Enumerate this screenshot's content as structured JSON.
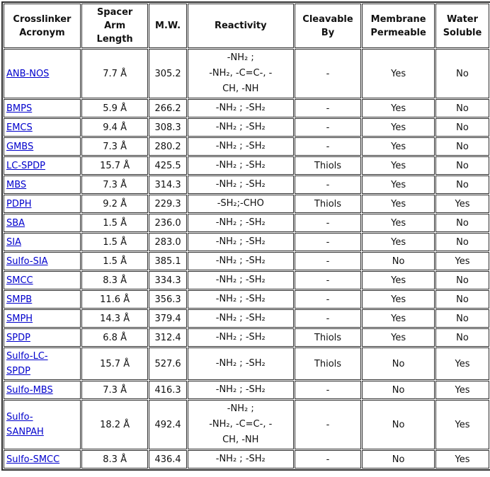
{
  "colors": {
    "link_blue": "#0000cc",
    "border": "#2e2e2e",
    "text": "#111111",
    "background": "#ffffff"
  },
  "table": {
    "headers": [
      {
        "id": "acronym",
        "label": "Crosslinker\nAcronym"
      },
      {
        "id": "spacer",
        "label": "Spacer\nArm\nLength"
      },
      {
        "id": "mw",
        "label": "M.W."
      },
      {
        "id": "reactivity",
        "label": "Reactivity"
      },
      {
        "id": "cleavable",
        "label": "Cleavable\nBy"
      },
      {
        "id": "membrane",
        "label": "Membrane\nPermeable"
      },
      {
        "id": "water",
        "label": "Water\nSoluble"
      }
    ],
    "rows": [
      {
        "acronym": "ANB-NOS",
        "spacer": "7.7 Å",
        "mw": "305.2",
        "reactivity": "-NH₂ ;\n-NH₂, -C=C-, -\nCH, -NH",
        "cleavable": "-",
        "membrane": "Yes",
        "water": "No"
      },
      {
        "acronym": "BMPS",
        "spacer": "5.9 Å",
        "mw": "266.2",
        "reactivity": "-NH₂ ; -SH₂",
        "cleavable": "-",
        "membrane": "Yes",
        "water": "No"
      },
      {
        "acronym": "EMCS",
        "spacer": "9.4 Å",
        "mw": "308.3",
        "reactivity": "-NH₂ ; -SH₂",
        "cleavable": "-",
        "membrane": "Yes",
        "water": "No"
      },
      {
        "acronym": "GMBS",
        "spacer": "7.3 Å",
        "mw": "280.2",
        "reactivity": "-NH₂ ; -SH₂",
        "cleavable": "-",
        "membrane": "Yes",
        "water": "No"
      },
      {
        "acronym": "LC-SPDP",
        "spacer": "15.7 Å",
        "mw": "425.5",
        "reactivity": "-NH₂ ; -SH₂",
        "cleavable": "Thiols",
        "membrane": "Yes",
        "water": "No"
      },
      {
        "acronym": "MBS",
        "spacer": "7.3 Å",
        "mw": "314.3",
        "reactivity": "-NH₂ ; -SH₂",
        "cleavable": "-",
        "membrane": "Yes",
        "water": "No"
      },
      {
        "acronym": "PDPH",
        "spacer": "9.2 Å",
        "mw": "229.3",
        "reactivity": "-SH₂;-CHO",
        "cleavable": "Thiols",
        "membrane": "Yes",
        "water": "Yes"
      },
      {
        "acronym": "SBA",
        "spacer": "1.5 Å",
        "mw": "236.0",
        "reactivity": "-NH₂ ; -SH₂",
        "cleavable": "-",
        "membrane": "Yes",
        "water": "No"
      },
      {
        "acronym": "SIA",
        "spacer": "1.5 Å",
        "mw": "283.0",
        "reactivity": "-NH₂ ; -SH₂",
        "cleavable": "-",
        "membrane": "Yes",
        "water": "No"
      },
      {
        "acronym": "Sulfo-SIA",
        "spacer": "1.5 Å",
        "mw": "385.1",
        "reactivity": "-NH₂ ; -SH₂",
        "cleavable": "-",
        "membrane": "No",
        "water": "Yes"
      },
      {
        "acronym": "SMCC",
        "spacer": "8.3 Å",
        "mw": "334.3",
        "reactivity": "-NH₂ ; -SH₂",
        "cleavable": "-",
        "membrane": "Yes",
        "water": "No"
      },
      {
        "acronym": "SMPB",
        "spacer": "11.6 Å",
        "mw": "356.3",
        "reactivity": "-NH₂ ; -SH₂",
        "cleavable": "-",
        "membrane": "Yes",
        "water": "No"
      },
      {
        "acronym": "SMPH",
        "spacer": "14.3 Å",
        "mw": "379.4",
        "reactivity": "-NH₂ ; -SH₂",
        "cleavable": "-",
        "membrane": "Yes",
        "water": "No"
      },
      {
        "acronym": "SPDP",
        "spacer": "6.8 Å",
        "mw": "312.4",
        "reactivity": "-NH₂ ; -SH₂",
        "cleavable": "Thiols",
        "membrane": "Yes",
        "water": "No"
      },
      {
        "acronym": "Sulfo-LC-\nSPDP",
        "spacer": "15.7 Å",
        "mw": "527.6",
        "reactivity": "-NH₂ ; -SH₂",
        "cleavable": "Thiols",
        "membrane": "No",
        "water": "Yes"
      },
      {
        "acronym": "Sulfo-MBS",
        "spacer": "7.3 Å",
        "mw": "416.3",
        "reactivity": "-NH₂ ; -SH₂",
        "cleavable": "-",
        "membrane": "No",
        "water": "Yes"
      },
      {
        "acronym": "Sulfo-\nSANPAH",
        "spacer": "18.2 Å",
        "mw": "492.4",
        "reactivity": "-NH₂ ;\n-NH₂, -C=C-, -\nCH, -NH",
        "cleavable": "-",
        "membrane": "No",
        "water": "Yes"
      },
      {
        "acronym": "Sulfo-SMCC",
        "spacer": "8.3 Å",
        "mw": "436.4",
        "reactivity": "-NH₂ ; -SH₂",
        "cleavable": "-",
        "membrane": "No",
        "water": "Yes"
      }
    ]
  }
}
